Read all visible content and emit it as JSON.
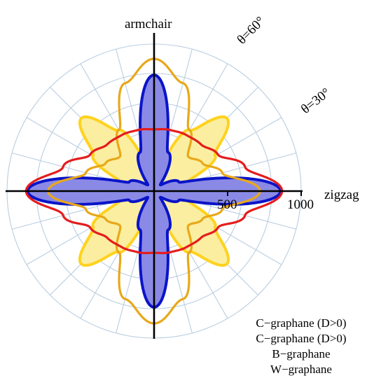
{
  "chart_data": {
    "type": "polar",
    "title": "",
    "r_max": 1000,
    "r_ticks": [
      500,
      1000
    ],
    "r_tick_labels": [
      "500",
      "1000"
    ],
    "angular_grid_step_deg": 15,
    "radial_grid_rings": [
      200,
      400,
      600,
      800,
      1000
    ],
    "direction_labels": {
      "armchair": "armchair",
      "zigzag": "zigzag"
    },
    "angle_labels": [
      "θ=30°",
      "θ=60°"
    ],
    "legend_position": "bottom-right",
    "series": [
      {
        "name": "C−graphane (D>0)",
        "style": "filled",
        "color": "#0a14c8",
        "fill": "#8a8ae6",
        "polar": [
          [
            0,
            860
          ],
          [
            20,
            180
          ],
          [
            45,
            60
          ],
          [
            70,
            280
          ],
          [
            90,
            790
          ],
          [
            110,
            280
          ],
          [
            135,
            60
          ],
          [
            160,
            180
          ],
          [
            180,
            860
          ]
        ]
      },
      {
        "name": "C−graphane (D>0)",
        "style": "filled",
        "color": "#ffd21e",
        "fill": "#fbeea0",
        "polar": [
          [
            0,
            320
          ],
          [
            15,
            240
          ],
          [
            30,
            480
          ],
          [
            45,
            700
          ],
          [
            60,
            480
          ],
          [
            75,
            200
          ],
          [
            90,
            120
          ],
          [
            105,
            200
          ],
          [
            120,
            480
          ],
          [
            135,
            700
          ],
          [
            150,
            480
          ],
          [
            165,
            240
          ],
          [
            180,
            320
          ]
        ]
      },
      {
        "name": "B−graphane",
        "style": "line",
        "color": "#e8a81a",
        "polar": [
          [
            0,
            720
          ],
          [
            15,
            480
          ],
          [
            30,
            380
          ],
          [
            45,
            330
          ],
          [
            60,
            480
          ],
          [
            75,
            760
          ],
          [
            90,
            900
          ],
          [
            105,
            760
          ],
          [
            120,
            480
          ],
          [
            135,
            330
          ],
          [
            150,
            380
          ],
          [
            165,
            480
          ],
          [
            180,
            720
          ]
        ]
      },
      {
        "name": "W−graphane",
        "style": "line",
        "color": "#e51c1c",
        "polar": [
          [
            0,
            870
          ],
          [
            15,
            640
          ],
          [
            30,
            500
          ],
          [
            45,
            450
          ],
          [
            60,
            440
          ],
          [
            75,
            430
          ],
          [
            90,
            420
          ],
          [
            105,
            430
          ],
          [
            120,
            440
          ],
          [
            135,
            450
          ],
          [
            150,
            500
          ],
          [
            165,
            640
          ],
          [
            180,
            870
          ]
        ]
      }
    ]
  }
}
